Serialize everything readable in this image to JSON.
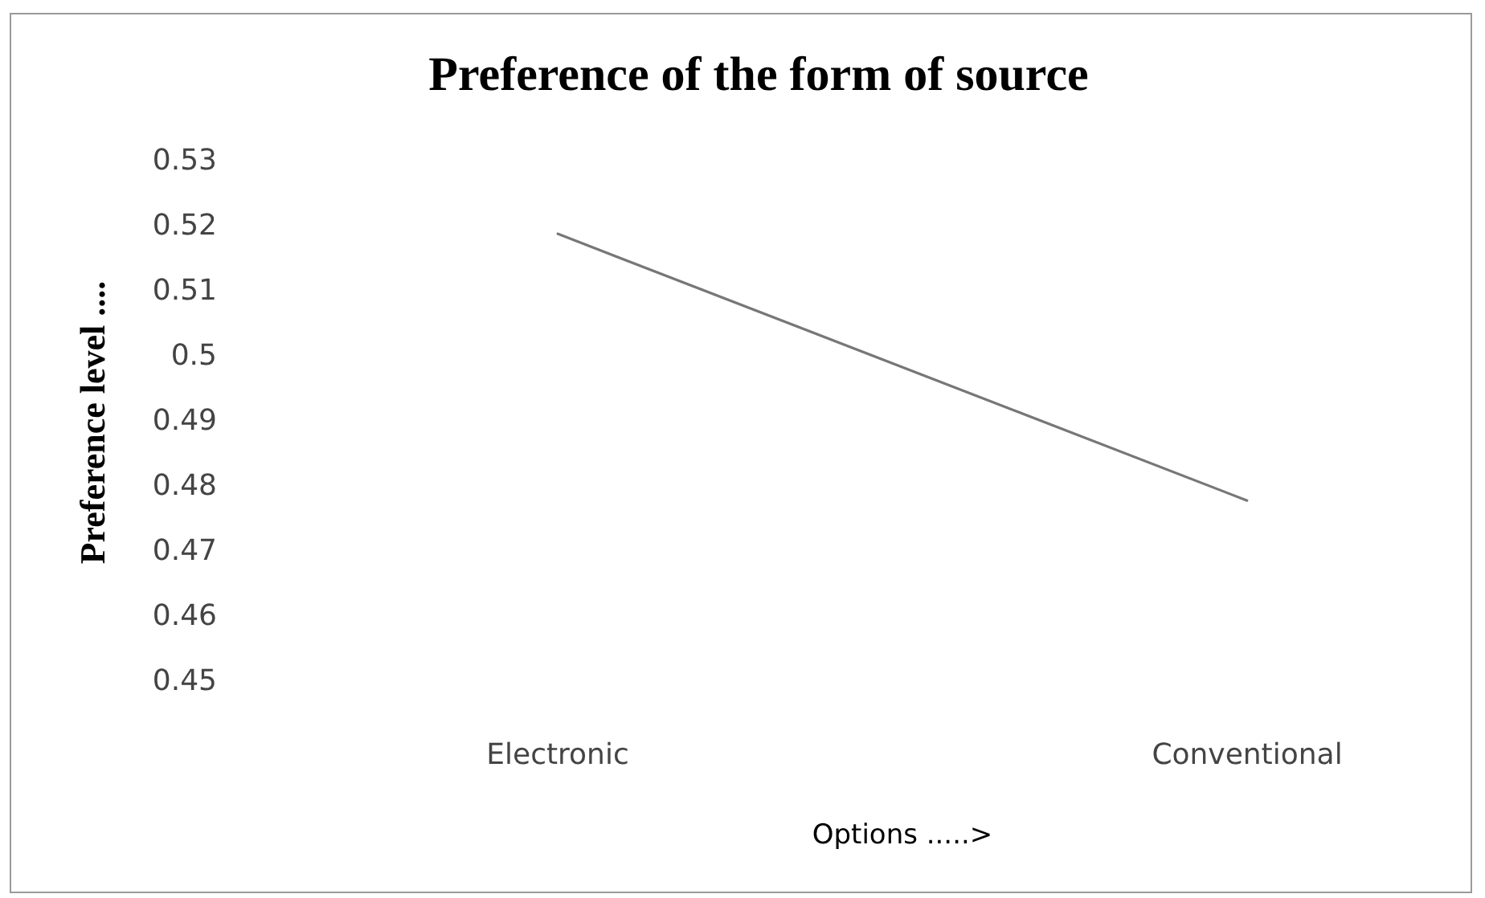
{
  "chart_data": {
    "type": "line",
    "title": "Preference of the form of source",
    "xlabel": "Options .....>",
    "ylabel": "Preference level ....",
    "categories": [
      "Electronic",
      "Conventional"
    ],
    "series": [
      {
        "color": "#777777",
        "values": [
          0.519,
          0.478
        ]
      }
    ],
    "ylim": [
      0.45,
      0.53
    ],
    "yticks": [
      0.45,
      0.46,
      0.47,
      0.48,
      0.49,
      0.5,
      0.51,
      0.52,
      0.53
    ],
    "grid": false,
    "legend": false,
    "marker": "none",
    "line_style": "solid"
  }
}
